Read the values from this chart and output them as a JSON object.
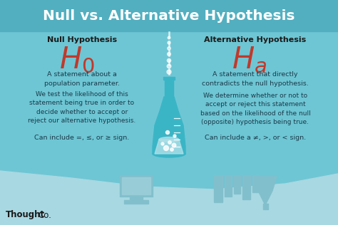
{
  "title": "Null vs. Alternative Hypothesis",
  "title_color": "#ffffff",
  "bg_color": "#6ec6d4",
  "left_header": "Null Hypothesis",
  "right_header": "Alternative Hypothesis",
  "header_color": "#1a1a1a",
  "symbol_color": "#c0392b",
  "left_text1": "A statement about a\npopulation parameter.",
  "left_text2": "We test the likelihood of this\nstatement being true in order to\ndecide whether to accept or\nreject our alternative hypothesis.",
  "left_text3": "Can include =, ≤, or ≥ sign.",
  "right_text1": "A statement that directly\ncontradicts the null hypothesis.",
  "right_text2": "We determine whether or not to\naccept or reject this statement\nbased on the likelihood of the null\n(opposite) hypothesis being true.",
  "right_text3": "Can include a ≠, >, or < sign.",
  "body_text_color": "#1a3a4a",
  "flask_color": "#3ab5c6",
  "flask_liquid_color": "#b0e0e8",
  "bottom_bg": "#a8d8e2",
  "silhouette_color": "#82bfcc",
  "title_bar_color": "#52afc0"
}
